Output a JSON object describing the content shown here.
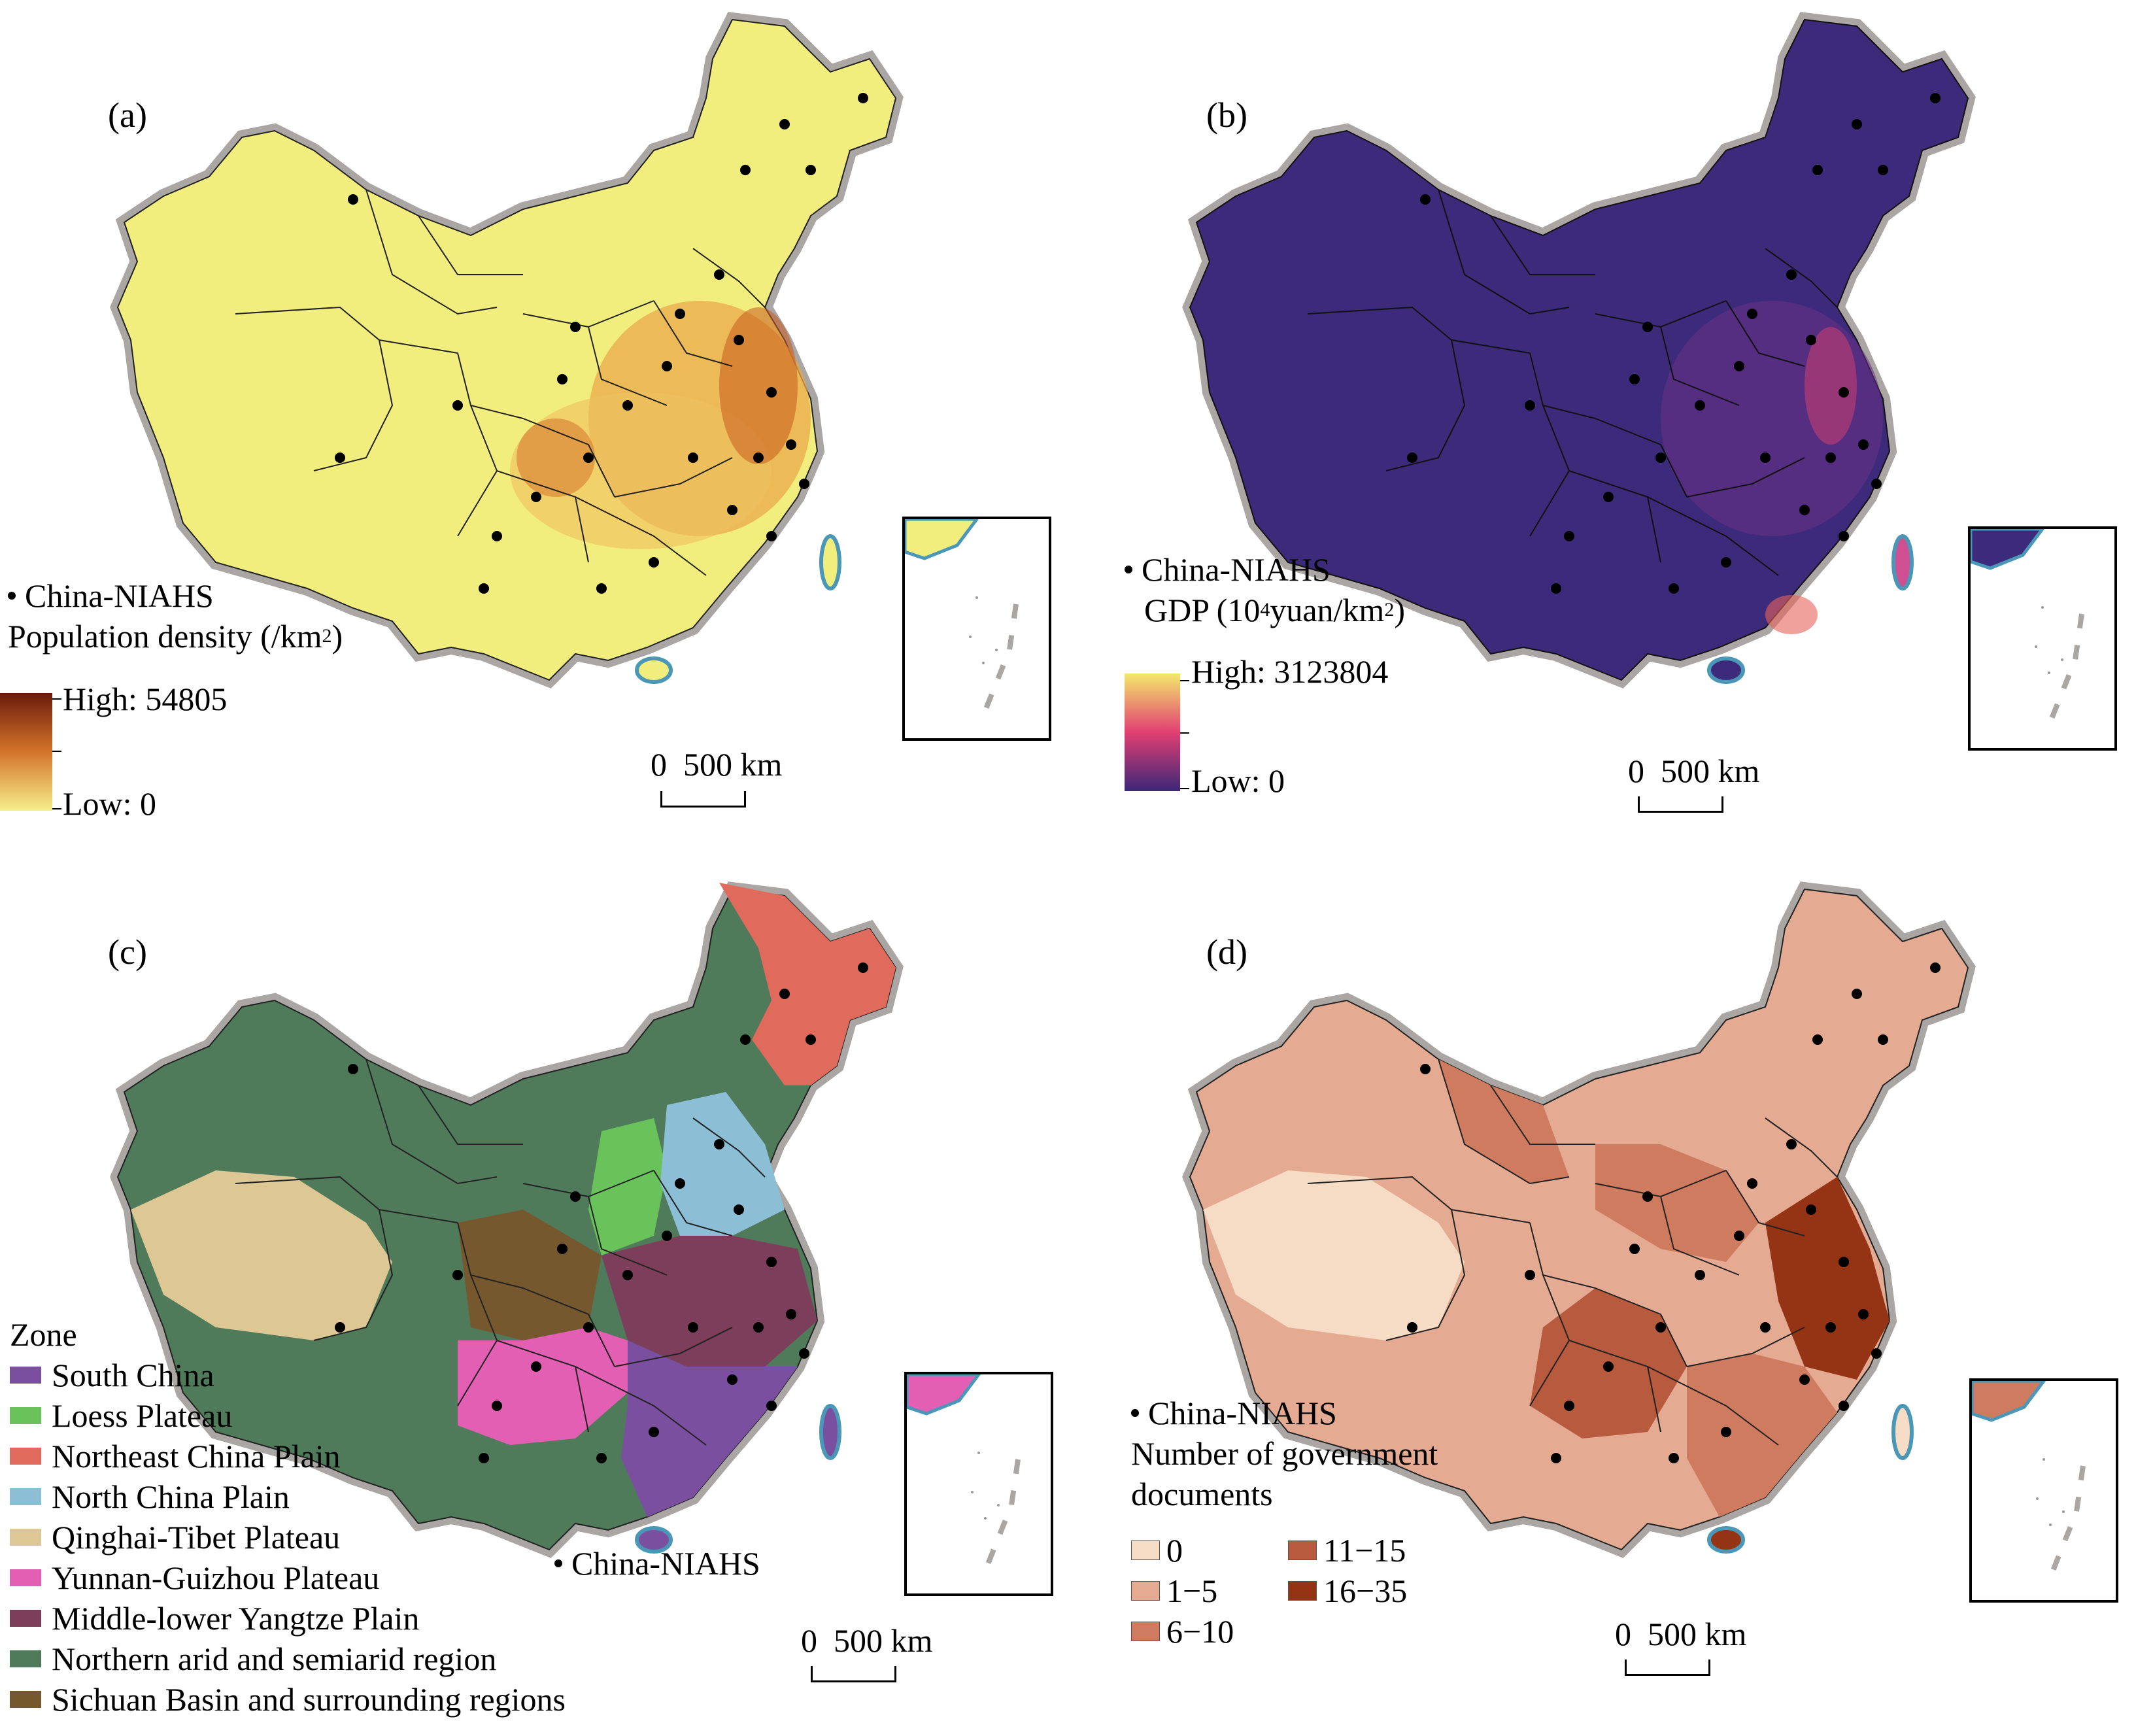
{
  "panels": {
    "a": {
      "label": "(a)",
      "point_label": "China-NIAHS",
      "legend_title": "Population density (/km",
      "legend_sup": "2",
      "legend_title_end": ")",
      "high": "High: 54805",
      "low": "Low: 0",
      "scale_zero": "0",
      "scale_text": "500 km",
      "fill": "#f2ee7e",
      "hot": "#d4742a",
      "ramp": [
        "#6b1a0c",
        "#d4742a",
        "#f6ef8c"
      ]
    },
    "b": {
      "label": "(b)",
      "point_label": "China-NIAHS",
      "legend_title_pre": "GDP (10",
      "legend_sup_a": "4",
      "legend_title_mid": " yuan/km",
      "legend_sup_b": "2",
      "legend_title_end": ")",
      "high": "High: 3123804",
      "low": "Low: 0",
      "scale_zero": "0",
      "scale_text": "500 km",
      "fill": "#3c2a7a",
      "hot": "#d94f6a",
      "ramp": [
        "#f3e96b",
        "#e23f72",
        "#3b2778"
      ]
    },
    "c": {
      "label": "(c)",
      "zone_title": "Zone",
      "zones": [
        {
          "name": "South China",
          "color": "#7a4fa0"
        },
        {
          "name": "Loess Plateau",
          "color": "#69c25a"
        },
        {
          "name": "Northeast China Plain",
          "color": "#e06a5c"
        },
        {
          "name": "North China Plain",
          "color": "#8cbfd6"
        },
        {
          "name": "Qinghai-Tibet Plateau",
          "color": "#dcc795"
        },
        {
          "name": "Yunnan-Guizhou Plateau",
          "color": "#e35fb3"
        },
        {
          "name": "Middle-lower Yangtze Plain",
          "color": "#7c3e5a"
        },
        {
          "name": "Northern arid and semiarid region",
          "color": "#4f7b5a"
        },
        {
          "name": "Sichuan Basin and surrounding regions",
          "color": "#76582f"
        }
      ],
      "point_label": "China-NIAHS",
      "scale_zero": "0",
      "scale_text": "500 km"
    },
    "d": {
      "label": "(d)",
      "point_label": "China-NIAHS",
      "legend_title_1": "Number of government",
      "legend_title_2": "documents",
      "classes": [
        {
          "label": "0",
          "color": "#f6dcc4"
        },
        {
          "label": "1−5",
          "color": "#e4ab92"
        },
        {
          "label": "6−10",
          "color": "#cf7b5f"
        },
        {
          "label": "11−15",
          "color": "#b85a3e"
        },
        {
          "label": "16−35",
          "color": "#943414"
        }
      ],
      "scale_zero": "0",
      "scale_text": "500 km"
    }
  }
}
